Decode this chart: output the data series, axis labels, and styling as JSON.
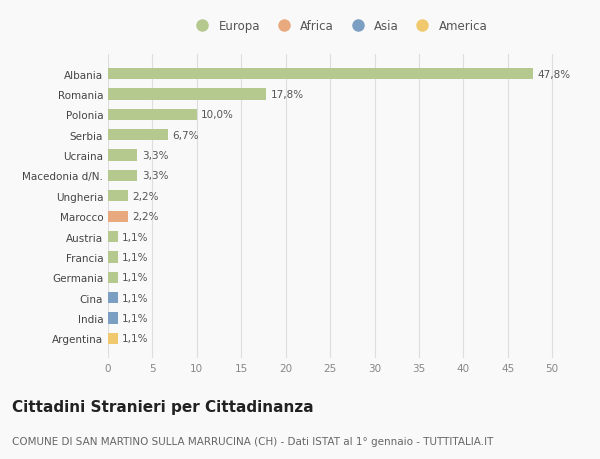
{
  "categories": [
    "Albania",
    "Romania",
    "Polonia",
    "Serbia",
    "Ucraina",
    "Macedonia d/N.",
    "Ungheria",
    "Marocco",
    "Austria",
    "Francia",
    "Germania",
    "Cina",
    "India",
    "Argentina"
  ],
  "values": [
    47.8,
    17.8,
    10.0,
    6.7,
    3.3,
    3.3,
    2.2,
    2.2,
    1.1,
    1.1,
    1.1,
    1.1,
    1.1,
    1.1
  ],
  "labels": [
    "47,8%",
    "17,8%",
    "10,0%",
    "6,7%",
    "3,3%",
    "3,3%",
    "2,2%",
    "2,2%",
    "1,1%",
    "1,1%",
    "1,1%",
    "1,1%",
    "1,1%",
    "1,1%"
  ],
  "continents": [
    "Europa",
    "Europa",
    "Europa",
    "Europa",
    "Europa",
    "Europa",
    "Europa",
    "Africa",
    "Europa",
    "Europa",
    "Europa",
    "Asia",
    "Asia",
    "America"
  ],
  "continent_colors": {
    "Europa": "#b5c98e",
    "Africa": "#e8a97e",
    "Asia": "#7a9fc2",
    "America": "#f0c96e"
  },
  "legend_order": [
    "Europa",
    "Africa",
    "Asia",
    "America"
  ],
  "xlim": [
    0,
    52
  ],
  "xticks": [
    0,
    5,
    10,
    15,
    20,
    25,
    30,
    35,
    40,
    45,
    50
  ],
  "title": "Cittadini Stranieri per Cittadinanza",
  "subtitle": "COMUNE DI SAN MARTINO SULLA MARRUCINA (CH) - Dati ISTAT al 1° gennaio - TUTTITALIA.IT",
  "background_color": "#f9f9f9",
  "grid_color": "#dddddd",
  "bar_height": 0.55,
  "title_fontsize": 11,
  "subtitle_fontsize": 7.5,
  "label_fontsize": 7.5,
  "tick_fontsize": 7.5,
  "legend_fontsize": 8.5
}
